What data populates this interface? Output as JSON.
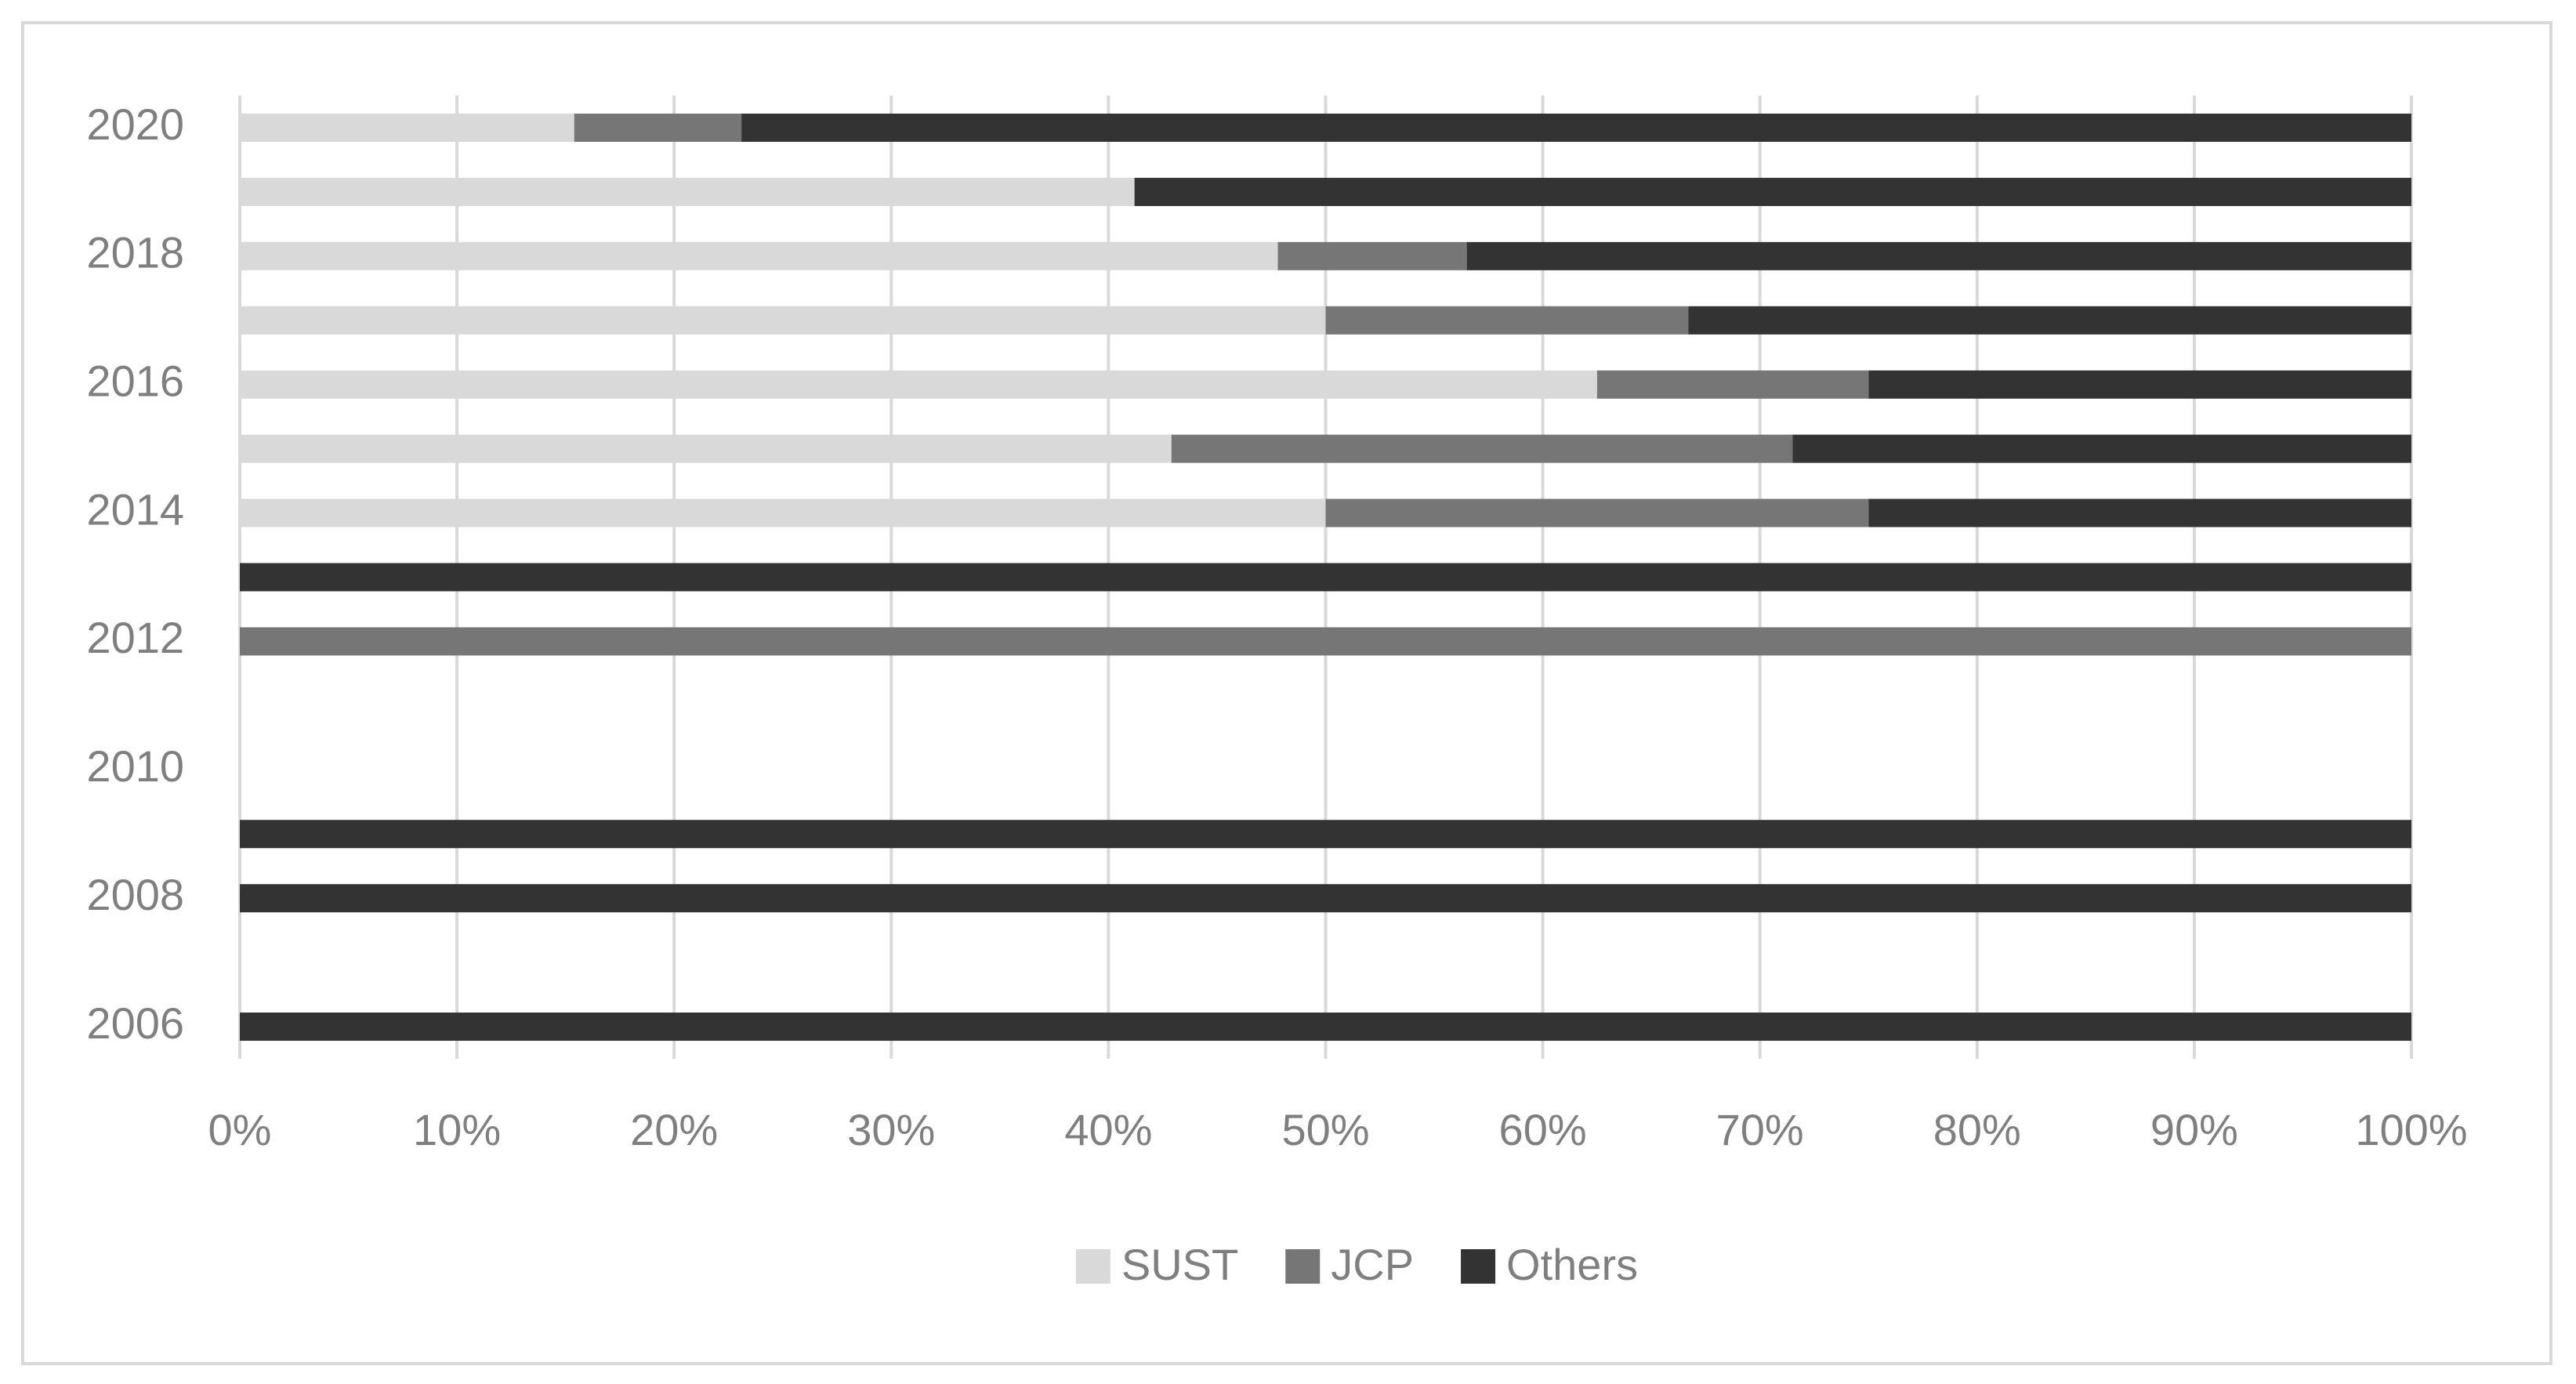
{
  "chart_data": {
    "type": "bar",
    "orientation": "horizontal",
    "stacked": true,
    "categories": [
      "2006",
      null,
      "2008",
      null,
      "2010",
      null,
      "2012",
      null,
      "2014",
      null,
      "2016",
      null,
      "2018",
      null,
      "2020"
    ],
    "series": [
      {
        "name": "SUST",
        "color": "#d9d9d9",
        "values": [
          0,
          0,
          0,
          0,
          0,
          0,
          0,
          0,
          50,
          42.9,
          62.5,
          50,
          47.8,
          41.2,
          15.4
        ]
      },
      {
        "name": "JCP",
        "color": "#767676",
        "values": [
          0,
          0,
          0,
          0,
          0,
          0,
          100,
          0,
          25,
          28.6,
          12.5,
          16.7,
          8.7,
          0,
          7.7
        ]
      },
      {
        "name": "Others",
        "color": "#333333",
        "values": [
          100,
          0,
          100,
          100,
          0,
          0,
          0,
          100,
          25,
          28.5,
          25,
          33.3,
          43.5,
          58.8,
          76.9
        ]
      }
    ],
    "xlim": [
      0,
      100
    ],
    "xticks": [
      {
        "value": 0,
        "label": "0%"
      },
      {
        "value": 10,
        "label": "10%"
      },
      {
        "value": 20,
        "label": "20%"
      },
      {
        "value": 30,
        "label": "30%"
      },
      {
        "value": 40,
        "label": "40%"
      },
      {
        "value": 50,
        "label": "50%"
      },
      {
        "value": 60,
        "label": "60%"
      },
      {
        "value": 70,
        "label": "70%"
      },
      {
        "value": 80,
        "label": "80%"
      },
      {
        "value": 90,
        "label": "90%"
      },
      {
        "value": 100,
        "label": "100%"
      }
    ],
    "grid": true,
    "legend": "bottom"
  }
}
